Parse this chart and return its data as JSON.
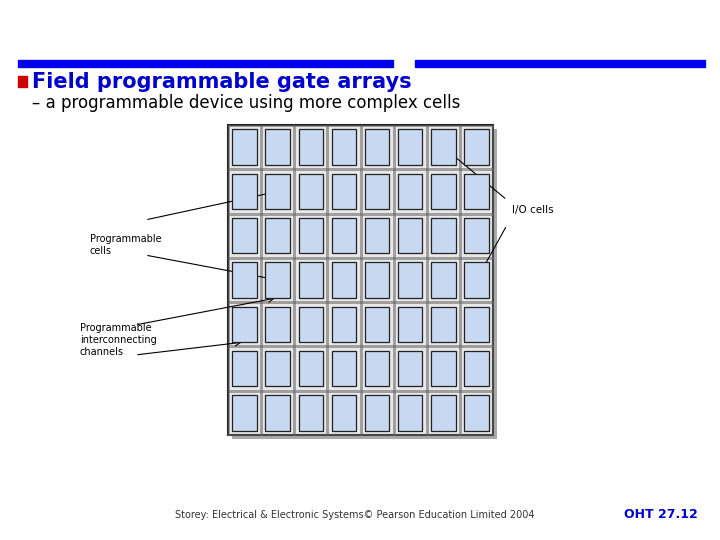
{
  "title_bullet": "Field programmable gate arrays",
  "subtitle": "– a programmable device using more complex cells",
  "title_color": "#0000CC",
  "bullet_color": "#CC0000",
  "subtitle_color": "#000000",
  "background_color": "#FFFFFF",
  "footer_text": "Storey: Electrical & Electronic Systems© Pearson Education Limited 2004",
  "footer_right": "OHT 27.12",
  "footer_color": "#333333",
  "footer_right_color": "#0000CC",
  "bar_color": "#0000EE",
  "grid_rows": 7,
  "grid_cols": 8,
  "cell_color": "#C8D8F0",
  "cell_border": "#222222",
  "grid_border": "#222222",
  "label_programmable_cells": "Programmable\ncells",
  "label_interconnecting": "Programmable\ninterconnecting\nchannels",
  "label_io_cells": "I/O cells"
}
